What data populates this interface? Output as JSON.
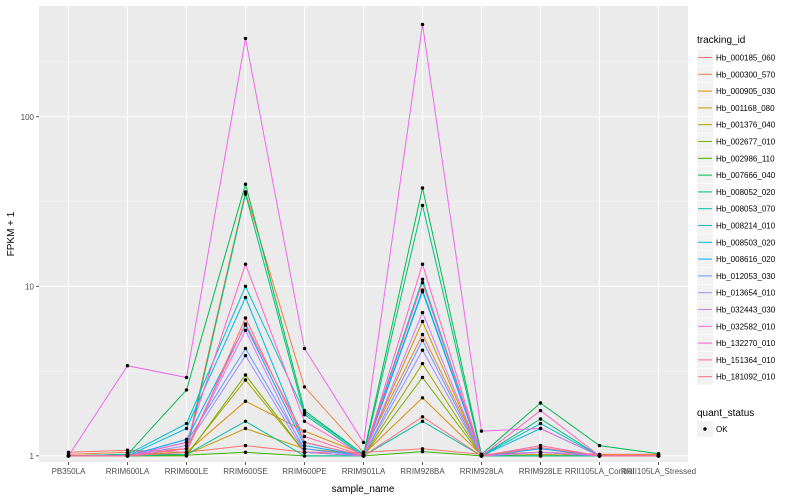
{
  "chart_data": {
    "type": "line",
    "title": "",
    "xlabel": "sample_name",
    "ylabel": "FPKM + 1",
    "y_scale": "log10",
    "ylim": [
      0.92,
      450
    ],
    "yticks": [
      1,
      10,
      100
    ],
    "ytick_labels": [
      "1",
      "10",
      "100"
    ],
    "grid": true,
    "legend_position": "right",
    "categories": [
      "PB350LA",
      "RRIM600LA",
      "RRIM600LE",
      "RRIM600SE",
      "RRIM600PE",
      "RRIM901LA",
      "RRIM928BA",
      "RRIM928LA",
      "RRIM928LE",
      "RRII105LA_Control",
      "RRII105LA_Stressed"
    ],
    "legend_title": "tracking_id",
    "series": [
      {
        "name": "Hb_000185_060",
        "color": "#F8766D",
        "values": [
          1.05,
          1.08,
          1.05,
          1.15,
          1.05,
          1.05,
          1.1,
          1.02,
          1.05,
          1.02,
          1.02
        ]
      },
      {
        "name": "Hb_000300_570",
        "color": "#EE8043",
        "values": [
          1.02,
          1.05,
          1.1,
          36,
          2.55,
          1.05,
          5.2,
          1.02,
          1.05,
          1.02,
          1.02
        ]
      },
      {
        "name": "Hb_000905_030",
        "color": "#DE8C00",
        "values": [
          1.0,
          1.02,
          1.05,
          2.1,
          1.4,
          1.02,
          2.2,
          1.01,
          1.05,
          1.0,
          1.0
        ]
      },
      {
        "name": "Hb_001168_080",
        "color": "#C49A00",
        "values": [
          1.0,
          1.02,
          1.02,
          1.45,
          1.1,
          1.02,
          6.2,
          1.0,
          1.02,
          1.0,
          1.0
        ]
      },
      {
        "name": "Hb_001376_040",
        "color": "#A3A500",
        "values": [
          1.0,
          1.0,
          1.02,
          2.8,
          1.05,
          1.0,
          3.5,
          1.0,
          1.0,
          1.0,
          1.0
        ]
      },
      {
        "name": "Hb_002677_010",
        "color": "#7CAE00",
        "values": [
          1.0,
          1.0,
          1.0,
          3.0,
          1.05,
          1.0,
          2.9,
          1.0,
          1.0,
          1.0,
          1.0
        ]
      },
      {
        "name": "Hb_002986_110",
        "color": "#39B600",
        "values": [
          1.0,
          1.0,
          1.01,
          1.05,
          1.0,
          1.0,
          1.06,
          1.0,
          1.0,
          1.0,
          1.0
        ]
      },
      {
        "name": "Hb_007666_040",
        "color": "#00BB4E",
        "values": [
          1.0,
          1.02,
          2.45,
          40,
          1.85,
          1.02,
          38,
          1.02,
          2.05,
          1.15,
          1.03
        ]
      },
      {
        "name": "Hb_008052_020",
        "color": "#00BF7D",
        "values": [
          1.0,
          1.0,
          1.05,
          35,
          1.75,
          1.0,
          30,
          1.0,
          1.65,
          1.0,
          1.0
        ]
      },
      {
        "name": "Hb_008053_070",
        "color": "#00C1A3",
        "values": [
          1.0,
          1.0,
          1.02,
          1.6,
          1.0,
          1.0,
          1.6,
          1.0,
          1.0,
          1.0,
          1.0
        ]
      },
      {
        "name": "Hb_008214_010",
        "color": "#00BFC4",
        "values": [
          1.0,
          1.02,
          1.55,
          10,
          1.8,
          1.02,
          11,
          1.0,
          1.55,
          1.0,
          1.0
        ]
      },
      {
        "name": "Hb_008503_020",
        "color": "#00B8E5",
        "values": [
          1.0,
          1.0,
          1.45,
          8.6,
          1.2,
          1.0,
          9.5,
          1.0,
          1.45,
          1.0,
          1.0
        ]
      },
      {
        "name": "Hb_008616_020",
        "color": "#00A9FF",
        "values": [
          1.0,
          1.0,
          1.25,
          5.9,
          1.15,
          1.0,
          9.3,
          1.0,
          1.1,
          1.0,
          1.0
        ]
      },
      {
        "name": "Hb_012053_030",
        "color": "#619CFF",
        "values": [
          1.0,
          1.0,
          1.2,
          4.3,
          1.1,
          1.0,
          4.8,
          1.0,
          1.05,
          1.0,
          1.0
        ]
      },
      {
        "name": "Hb_013654_010",
        "color": "#9F8CFF",
        "values": [
          1.0,
          1.0,
          1.15,
          3.9,
          1.05,
          1.0,
          4.2,
          1.0,
          1.05,
          1.0,
          1.0
        ]
      },
      {
        "name": "Hb_032443_030",
        "color": "#D277FF",
        "values": [
          1.0,
          1.0,
          1.1,
          5.5,
          1.05,
          1.0,
          7.0,
          1.0,
          1.05,
          1.0,
          1.0
        ]
      },
      {
        "name": "Hb_032582_010",
        "color": "#EF67EB",
        "values": [
          1.0,
          3.4,
          2.9,
          290,
          4.3,
          1.2,
          350,
          1.4,
          1.45,
          1.0,
          1.0
        ]
      },
      {
        "name": "Hb_132270_010",
        "color": "#FF61CC",
        "values": [
          1.0,
          1.0,
          1.2,
          13.5,
          1.6,
          1.0,
          13.5,
          1.0,
          1.85,
          1.0,
          1.0
        ]
      },
      {
        "name": "Hb_151364_010",
        "color": "#FF67A4",
        "values": [
          1.0,
          1.0,
          1.1,
          6.0,
          1.3,
          1.0,
          10.5,
          1.0,
          1.15,
          1.0,
          1.0
        ]
      },
      {
        "name": "Hb_181092_010",
        "color": "#FC717F",
        "values": [
          1.0,
          1.0,
          1.05,
          6.5,
          1.2,
          1.0,
          1.7,
          1.0,
          1.12,
          1.0,
          1.0
        ]
      }
    ],
    "shape_legend": {
      "title": "quant_status",
      "items": [
        "OK"
      ]
    }
  }
}
